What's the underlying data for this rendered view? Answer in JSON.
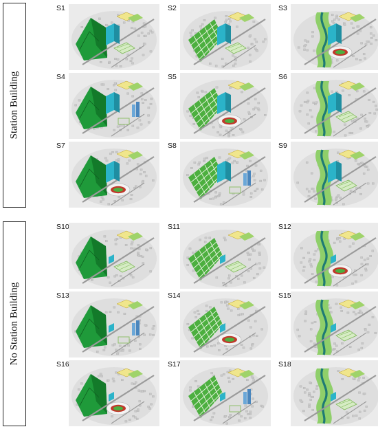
{
  "groups": [
    {
      "label": "Station Building"
    },
    {
      "label": "No Station Building"
    }
  ],
  "scenarios": [
    {
      "id": "S1",
      "left": "hill",
      "station": true,
      "lower": "park"
    },
    {
      "id": "S2",
      "left": "grid",
      "station": true,
      "lower": "park"
    },
    {
      "id": "S3",
      "left": "river",
      "station": true,
      "lower": "stadium"
    },
    {
      "id": "S4",
      "left": "hill",
      "station": true,
      "lower": "towers"
    },
    {
      "id": "S5",
      "left": "grid",
      "station": true,
      "lower": "stadium"
    },
    {
      "id": "S6",
      "left": "river",
      "station": true,
      "lower": "park"
    },
    {
      "id": "S7",
      "left": "hill",
      "station": true,
      "lower": "stadium"
    },
    {
      "id": "S8",
      "left": "grid",
      "station": true,
      "lower": "towers"
    },
    {
      "id": "S9",
      "left": "river",
      "station": true,
      "lower": "park"
    },
    {
      "id": "S10",
      "left": "hill",
      "station": false,
      "lower": "park"
    },
    {
      "id": "S11",
      "left": "grid",
      "station": false,
      "lower": "park"
    },
    {
      "id": "S12",
      "left": "river",
      "station": false,
      "lower": "stadium"
    },
    {
      "id": "S13",
      "left": "hill",
      "station": false,
      "lower": "towers"
    },
    {
      "id": "S14",
      "left": "grid",
      "station": false,
      "lower": "stadium"
    },
    {
      "id": "S15",
      "left": "river",
      "station": false,
      "lower": "park"
    },
    {
      "id": "S16",
      "left": "hill",
      "station": false,
      "lower": "stadium"
    },
    {
      "id": "S17",
      "left": "grid",
      "station": false,
      "lower": "towers"
    },
    {
      "id": "S18",
      "left": "river",
      "station": false,
      "lower": "park"
    }
  ],
  "colors": {
    "hill": "#1f9a3a",
    "hill_dark": "#137a2a",
    "grid": "#4caf3f",
    "river": "#8fcf6a",
    "river_water": "#1e7a74",
    "station": "#2bb3c9",
    "road": "#9a9a9a",
    "houses": "#c9c9c9",
    "ground": "#ebebeb",
    "track": "#c0392b",
    "tower": "#6aa7d8"
  }
}
